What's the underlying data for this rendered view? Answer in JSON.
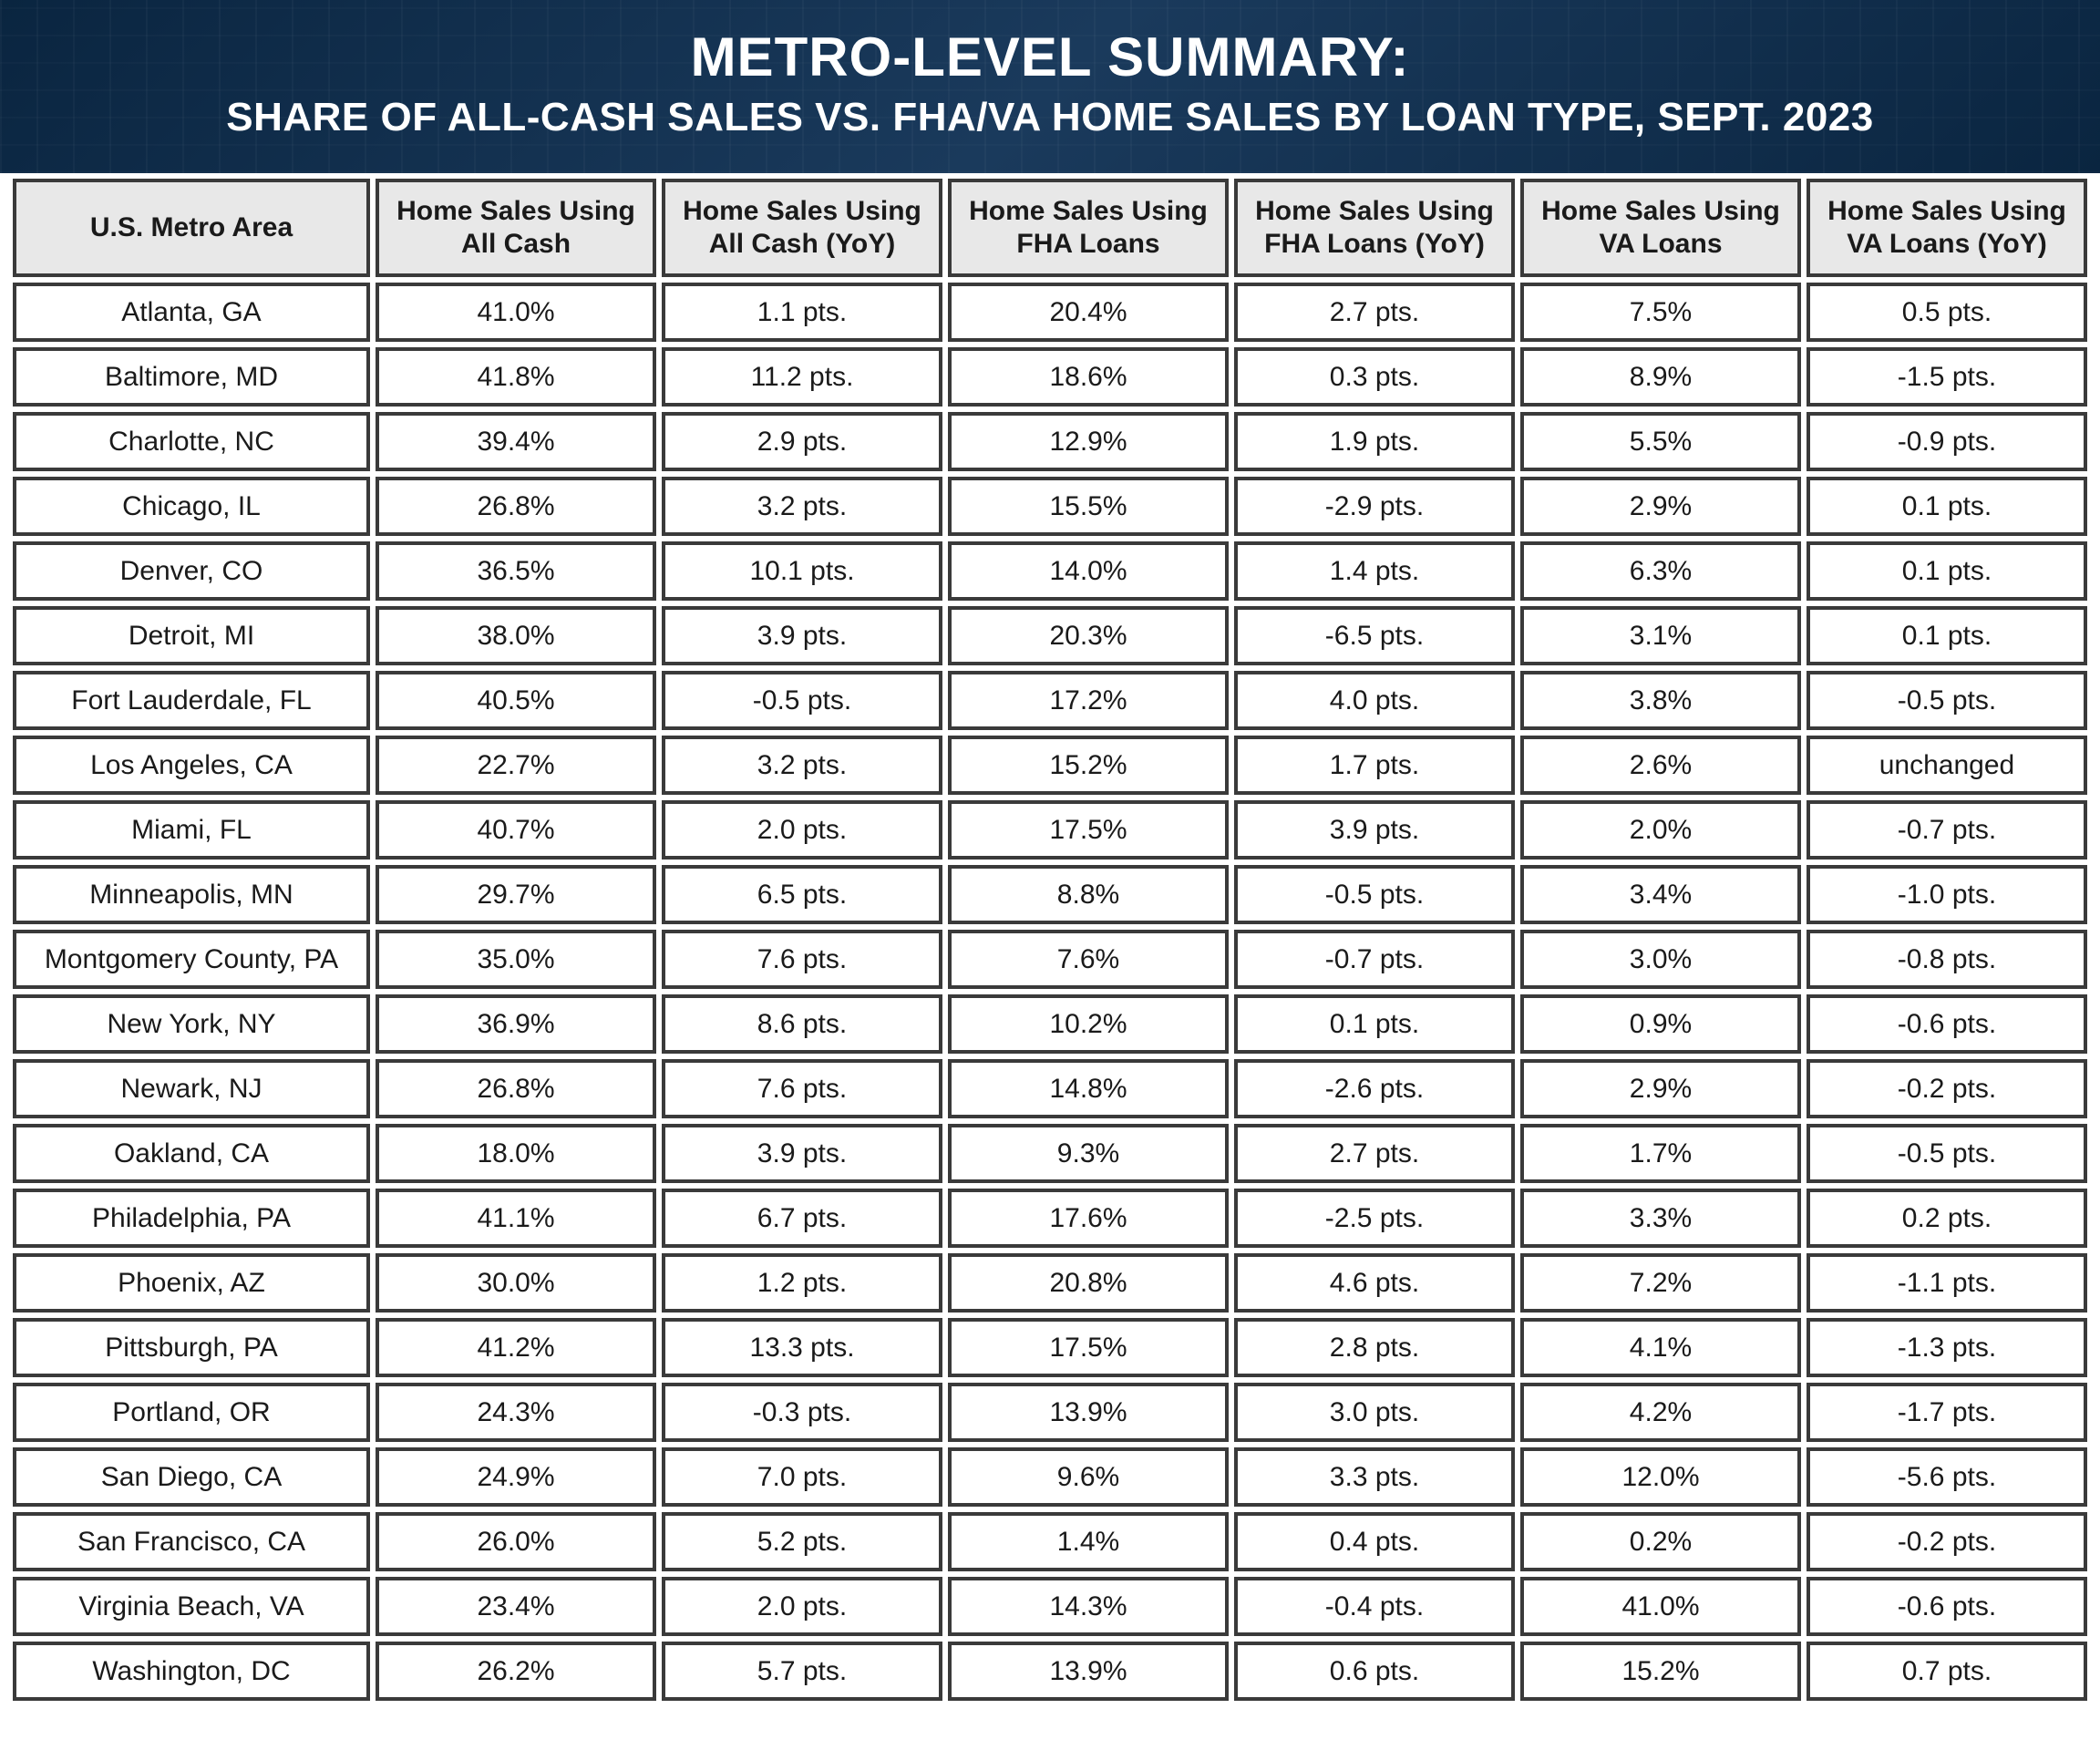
{
  "header": {
    "title": "METRO-LEVEL SUMMARY:",
    "subtitle": "SHARE OF ALL-CASH SALES VS. FHA/VA HOME SALES BY LOAN TYPE, SEPT. 2023",
    "bg_gradient": [
      "#0a2540",
      "#1a3a5c",
      "#0a2540"
    ],
    "title_color": "#ffffff",
    "title_fontsize": 60,
    "subtitle_fontsize": 44
  },
  "table": {
    "type": "table",
    "header_bg": "#e8e8e8",
    "cell_bg": "#ffffff",
    "border_color": "#3a3a3a",
    "border_width": 4,
    "header_fontsize": 30,
    "cell_fontsize": 30,
    "text_color": "#1a1a1a",
    "column_widths_pct": [
      17.5,
      13.75,
      13.75,
      13.75,
      13.75,
      13.75,
      13.75
    ],
    "columns": [
      "U.S. Metro Area",
      "Home Sales Using All Cash",
      "Home Sales Using All Cash (YoY)",
      "Home Sales Using FHA Loans",
      "Home Sales Using FHA Loans (YoY)",
      "Home Sales Using VA Loans",
      "Home Sales Using VA Loans (YoY)"
    ],
    "rows": [
      [
        "Atlanta, GA",
        "41.0%",
        "1.1 pts.",
        "20.4%",
        "2.7 pts.",
        "7.5%",
        "0.5 pts."
      ],
      [
        "Baltimore, MD",
        "41.8%",
        "11.2 pts.",
        "18.6%",
        "0.3 pts.",
        "8.9%",
        "-1.5 pts."
      ],
      [
        "Charlotte, NC",
        "39.4%",
        "2.9 pts.",
        "12.9%",
        "1.9 pts.",
        "5.5%",
        "-0.9 pts."
      ],
      [
        "Chicago, IL",
        "26.8%",
        "3.2 pts.",
        "15.5%",
        "-2.9 pts.",
        "2.9%",
        "0.1 pts."
      ],
      [
        "Denver, CO",
        "36.5%",
        "10.1 pts.",
        "14.0%",
        "1.4 pts.",
        "6.3%",
        "0.1 pts."
      ],
      [
        "Detroit, MI",
        "38.0%",
        "3.9 pts.",
        "20.3%",
        "-6.5 pts.",
        "3.1%",
        "0.1 pts."
      ],
      [
        "Fort Lauderdale, FL",
        "40.5%",
        "-0.5 pts.",
        "17.2%",
        "4.0 pts.",
        "3.8%",
        "-0.5 pts."
      ],
      [
        "Los Angeles, CA",
        "22.7%",
        "3.2 pts.",
        "15.2%",
        "1.7 pts.",
        "2.6%",
        "unchanged"
      ],
      [
        "Miami, FL",
        "40.7%",
        "2.0 pts.",
        "17.5%",
        "3.9 pts.",
        "2.0%",
        "-0.7 pts."
      ],
      [
        "Minneapolis, MN",
        "29.7%",
        "6.5 pts.",
        "8.8%",
        "-0.5 pts.",
        "3.4%",
        "-1.0 pts."
      ],
      [
        "Montgomery County, PA",
        "35.0%",
        "7.6 pts.",
        "7.6%",
        "-0.7 pts.",
        "3.0%",
        "-0.8 pts."
      ],
      [
        "New York, NY",
        "36.9%",
        "8.6 pts.",
        "10.2%",
        "0.1 pts.",
        "0.9%",
        "-0.6 pts."
      ],
      [
        "Newark, NJ",
        "26.8%",
        "7.6 pts.",
        "14.8%",
        "-2.6 pts.",
        "2.9%",
        "-0.2 pts."
      ],
      [
        "Oakland, CA",
        "18.0%",
        "3.9 pts.",
        "9.3%",
        "2.7 pts.",
        "1.7%",
        "-0.5 pts."
      ],
      [
        "Philadelphia, PA",
        "41.1%",
        "6.7 pts.",
        "17.6%",
        "-2.5 pts.",
        "3.3%",
        "0.2 pts."
      ],
      [
        "Phoenix, AZ",
        "30.0%",
        "1.2 pts.",
        "20.8%",
        "4.6 pts.",
        "7.2%",
        "-1.1 pts."
      ],
      [
        "Pittsburgh, PA",
        "41.2%",
        "13.3 pts.",
        "17.5%",
        "2.8 pts.",
        "4.1%",
        "-1.3 pts."
      ],
      [
        "Portland, OR",
        "24.3%",
        "-0.3 pts.",
        "13.9%",
        "3.0 pts.",
        "4.2%",
        "-1.7 pts."
      ],
      [
        "San Diego, CA",
        "24.9%",
        "7.0 pts.",
        "9.6%",
        "3.3 pts.",
        "12.0%",
        "-5.6 pts."
      ],
      [
        "San Francisco, CA",
        "26.0%",
        "5.2 pts.",
        "1.4%",
        "0.4 pts.",
        "0.2%",
        "-0.2 pts."
      ],
      [
        "Virginia Beach, VA",
        "23.4%",
        "2.0 pts.",
        "14.3%",
        "-0.4 pts.",
        "41.0%",
        "-0.6 pts."
      ],
      [
        "Washington, DC",
        "26.2%",
        "5.7 pts.",
        "13.9%",
        "0.6 pts.",
        "15.2%",
        "0.7 pts."
      ]
    ]
  }
}
